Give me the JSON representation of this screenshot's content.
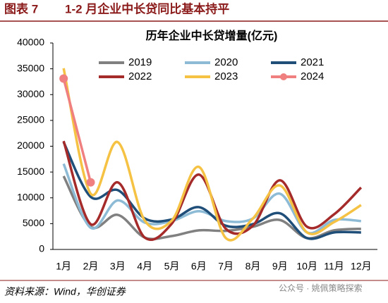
{
  "header": {
    "figure_label": "图表 7",
    "title": "1-2 月企业中长贷同比基本持平"
  },
  "chart_data": {
    "type": "line",
    "title": "历年企业中长贷增量(亿元)",
    "categories": [
      "1月",
      "2月",
      "3月",
      "4月",
      "5月",
      "6月",
      "7月",
      "8月",
      "9月",
      "10月",
      "11月",
      "12月"
    ],
    "series": [
      {
        "name": "2019",
        "color": "#808080",
        "values": [
          14200,
          4400,
          6700,
          2300,
          2600,
          3700,
          3600,
          4400,
          5700,
          2200,
          3700,
          4000
        ]
      },
      {
        "name": "2020",
        "color": "#8dbbd6",
        "values": [
          16600,
          4200,
          9500,
          5200,
          5500,
          7400,
          5500,
          6000,
          10800,
          3300,
          5700,
          5500
        ]
      },
      {
        "name": "2021",
        "color": "#1f4e79",
        "values": [
          20800,
          10200,
          11500,
          6000,
          5800,
          8200,
          4600,
          4900,
          7000,
          2200,
          3300,
          3300
        ]
      },
      {
        "name": "2022",
        "color": "#a52a2a",
        "values": [
          21000,
          4900,
          13000,
          2300,
          5000,
          14500,
          4000,
          4600,
          13400,
          4400,
          6800,
          12000
        ]
      },
      {
        "name": "2023",
        "color": "#f5c243",
        "values": [
          35100,
          10800,
          20800,
          5600,
          5600,
          16000,
          2200,
          6000,
          12400,
          3300,
          5300,
          8600
        ]
      },
      {
        "name": "2024",
        "color": "#f08080",
        "markers": true,
        "values": [
          33100,
          13000,
          null,
          null,
          null,
          null,
          null,
          null,
          null,
          null,
          null,
          null
        ]
      }
    ],
    "ylim": [
      0,
      40000
    ],
    "yticks": [
      0,
      5000,
      10000,
      15000,
      20000,
      25000,
      30000,
      35000,
      40000
    ],
    "legend": "top"
  },
  "footer": {
    "source": "资料来源：Wind，华创证券",
    "watermark": "公众号 · 姚佩策略探索"
  }
}
